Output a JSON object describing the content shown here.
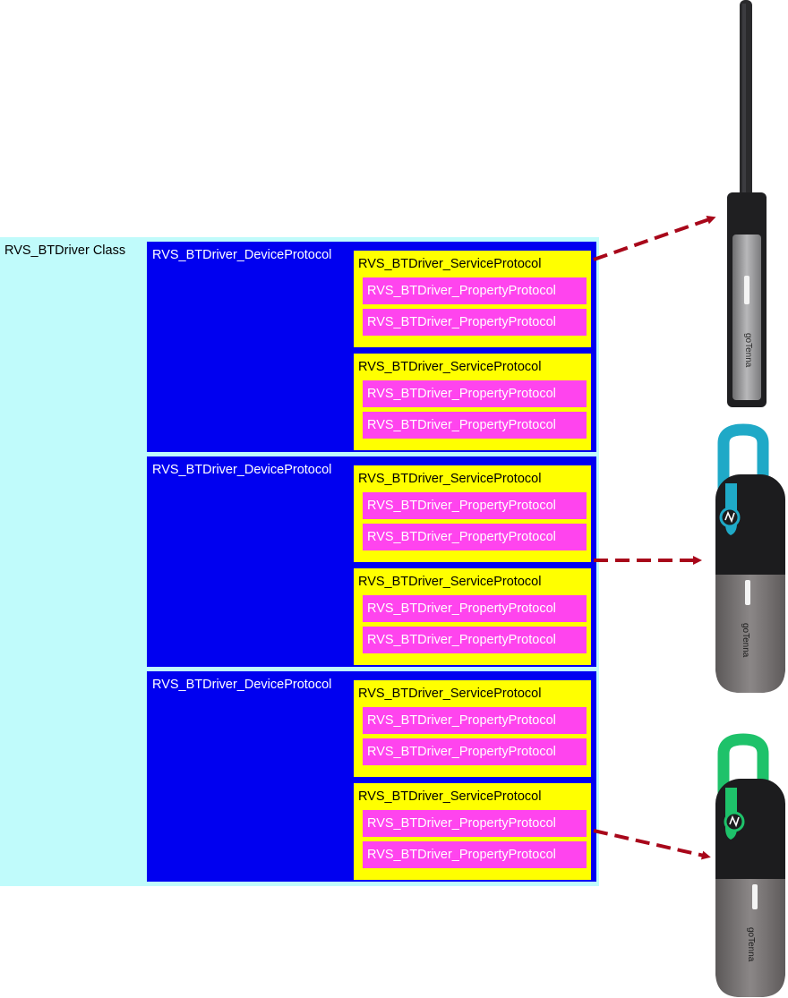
{
  "class_label": "RVS_BTDriver Class",
  "device_protocols": [
    {
      "label": "RVS_BTDriver_DeviceProtocol",
      "services": [
        {
          "label": "RVS_BTDriver_ServiceProtocol",
          "properties": [
            "RVS_BTDriver_PropertyProtocol",
            "RVS_BTDriver_PropertyProtocol"
          ]
        },
        {
          "label": "RVS_BTDriver_ServiceProtocol",
          "properties": [
            "RVS_BTDriver_PropertyProtocol",
            "RVS_BTDriver_PropertyProtocol"
          ]
        }
      ]
    },
    {
      "label": "RVS_BTDriver_DeviceProtocol",
      "services": [
        {
          "label": "RVS_BTDriver_ServiceProtocol",
          "properties": [
            "RVS_BTDriver_PropertyProtocol",
            "RVS_BTDriver_PropertyProtocol"
          ]
        },
        {
          "label": "RVS_BTDriver_ServiceProtocol",
          "properties": [
            "RVS_BTDriver_PropertyProtocol",
            "RVS_BTDriver_PropertyProtocol"
          ]
        }
      ]
    },
    {
      "label": "RVS_BTDriver_DeviceProtocol",
      "services": [
        {
          "label": "RVS_BTDriver_ServiceProtocol",
          "properties": [
            "RVS_BTDriver_PropertyProtocol",
            "RVS_BTDriver_PropertyProtocol"
          ]
        },
        {
          "label": "RVS_BTDriver_ServiceProtocol",
          "properties": [
            "RVS_BTDriver_PropertyProtocol",
            "RVS_BTDriver_PropertyProtocol"
          ]
        }
      ]
    }
  ],
  "device_images": [
    {
      "name": "gotenna-pro-antenna-device",
      "brand_text": "goTenna"
    },
    {
      "name": "gotenna-mesh-blue-strap-device",
      "brand_text": "goTenna"
    },
    {
      "name": "gotenna-mesh-green-strap-device",
      "brand_text": "goTenna"
    }
  ],
  "colors": {
    "class_bg": "#c0fbfb",
    "device_bg": "#0000f0",
    "service_bg": "#ffff00",
    "property_bg": "#ff44ee",
    "arrow": "#a8071a"
  }
}
